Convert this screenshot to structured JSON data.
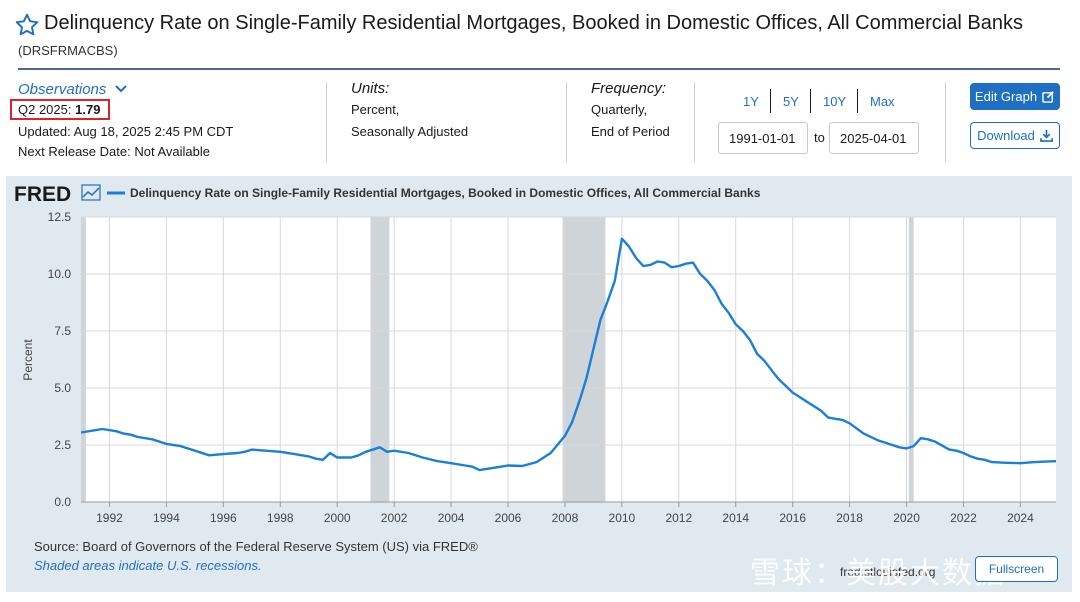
{
  "header": {
    "title": "Delinquency Rate on Single-Family Residential Mortgages, Booked in Domestic Offices, All Commercial Banks",
    "series_id": "(DRSFRMACBS)"
  },
  "observations": {
    "link_label": "Observations",
    "period_label": "Q2 2025:",
    "value": "1.79",
    "updated": "Updated: Aug 18, 2025 2:45 PM CDT",
    "next_release": "Next Release Date: Not Available"
  },
  "units": {
    "label": "Units:",
    "line1": "Percent,",
    "line2": "Seasonally Adjusted"
  },
  "frequency": {
    "label": "Frequency:",
    "line1": "Quarterly,",
    "line2": "End of Period"
  },
  "range": {
    "buttons": [
      "1Y",
      "5Y",
      "10Y",
      "Max"
    ],
    "start": "1991-01-01",
    "to_label": "to",
    "end": "2025-04-01"
  },
  "actions": {
    "edit_label": "Edit Graph",
    "download_label": "Download"
  },
  "chart_header": {
    "logo": "FRED",
    "legend_label": "Delinquency Rate on Single-Family Residential Mortgages, Booked in Domestic Offices, All Commercial Banks"
  },
  "footer": {
    "source": "Source: Board of Governors of the Federal Reserve System (US) via FRED®",
    "recession_note": "Shaded areas indicate U.S. recessions.",
    "site": "fred.stlouisfed.org",
    "fullscreen_label": "Fullscreen",
    "watermark": "雪球：美股大数据"
  },
  "colors": {
    "line": "#1a7fd9",
    "accent": "#1f6fc5",
    "recession": "#cfd4d9",
    "panel": "#e1e9f0",
    "highlight": "#d9232e"
  },
  "chart_data": {
    "type": "line",
    "title": "",
    "ylabel": "Percent",
    "xlabel": "",
    "xlim": [
      1991.0,
      2025.25
    ],
    "ylim": [
      0,
      12.5
    ],
    "y_ticks": [
      0.0,
      2.5,
      5.0,
      7.5,
      10.0,
      12.5
    ],
    "y_tick_labels": [
      "0.0",
      "2.5",
      "5.0",
      "7.5",
      "10.0",
      "12.5"
    ],
    "x_ticks": [
      1992,
      1994,
      1996,
      1998,
      2000,
      2002,
      2004,
      2006,
      2008,
      2010,
      2012,
      2014,
      2016,
      2018,
      2020,
      2022,
      2024
    ],
    "x_tick_labels": [
      "1992",
      "1994",
      "1996",
      "1998",
      "2000",
      "2002",
      "2004",
      "2006",
      "2008",
      "2010",
      "2012",
      "2014",
      "2016",
      "2018",
      "2020",
      "2022",
      "2024"
    ],
    "grid": true,
    "recessions": [
      [
        1991.0,
        1991.17
      ],
      [
        2001.17,
        2001.83
      ],
      [
        2007.92,
        2009.42
      ],
      [
        2020.08,
        2020.25
      ]
    ],
    "series": [
      {
        "name": "Delinquency Rate on Single-Family Residential Mortgages, Booked in Domestic Offices, All Commercial Banks",
        "points": [
          [
            1991.0,
            3.05
          ],
          [
            1991.5,
            3.15
          ],
          [
            1991.75,
            3.2
          ],
          [
            1992.25,
            3.1
          ],
          [
            1992.5,
            3.0
          ],
          [
            1992.75,
            2.95
          ],
          [
            1993.0,
            2.85
          ],
          [
            1993.5,
            2.75
          ],
          [
            1994.0,
            2.55
          ],
          [
            1994.5,
            2.45
          ],
          [
            1995.0,
            2.25
          ],
          [
            1995.5,
            2.05
          ],
          [
            1996.0,
            2.1
          ],
          [
            1996.5,
            2.15
          ],
          [
            1996.75,
            2.2
          ],
          [
            1997.0,
            2.3
          ],
          [
            1997.5,
            2.25
          ],
          [
            1998.0,
            2.2
          ],
          [
            1998.5,
            2.1
          ],
          [
            1999.0,
            2.0
          ],
          [
            1999.25,
            1.9
          ],
          [
            1999.5,
            1.85
          ],
          [
            1999.75,
            2.15
          ],
          [
            2000.0,
            1.95
          ],
          [
            2000.5,
            1.95
          ],
          [
            2000.75,
            2.05
          ],
          [
            2001.0,
            2.2
          ],
          [
            2001.5,
            2.4
          ],
          [
            2001.75,
            2.2
          ],
          [
            2002.0,
            2.25
          ],
          [
            2002.5,
            2.15
          ],
          [
            2003.0,
            1.95
          ],
          [
            2003.5,
            1.8
          ],
          [
            2004.0,
            1.7
          ],
          [
            2004.5,
            1.6
          ],
          [
            2004.75,
            1.55
          ],
          [
            2005.0,
            1.4
          ],
          [
            2005.25,
            1.45
          ],
          [
            2005.5,
            1.5
          ],
          [
            2005.75,
            1.55
          ],
          [
            2006.0,
            1.6
          ],
          [
            2006.5,
            1.58
          ],
          [
            2007.0,
            1.75
          ],
          [
            2007.5,
            2.15
          ],
          [
            2008.0,
            2.9
          ],
          [
            2008.25,
            3.5
          ],
          [
            2008.5,
            4.4
          ],
          [
            2008.75,
            5.4
          ],
          [
            2009.0,
            6.7
          ],
          [
            2009.25,
            8.0
          ],
          [
            2009.5,
            8.8
          ],
          [
            2009.75,
            9.7
          ],
          [
            2010.0,
            11.55
          ],
          [
            2010.25,
            11.2
          ],
          [
            2010.5,
            10.7
          ],
          [
            2010.75,
            10.35
          ],
          [
            2011.0,
            10.4
          ],
          [
            2011.25,
            10.55
          ],
          [
            2011.5,
            10.5
          ],
          [
            2011.75,
            10.3
          ],
          [
            2012.0,
            10.35
          ],
          [
            2012.25,
            10.45
          ],
          [
            2012.5,
            10.5
          ],
          [
            2012.75,
            10.0
          ],
          [
            2013.0,
            9.7
          ],
          [
            2013.25,
            9.3
          ],
          [
            2013.5,
            8.7
          ],
          [
            2013.75,
            8.3
          ],
          [
            2014.0,
            7.8
          ],
          [
            2014.25,
            7.5
          ],
          [
            2014.5,
            7.1
          ],
          [
            2014.75,
            6.5
          ],
          [
            2015.0,
            6.2
          ],
          [
            2015.25,
            5.8
          ],
          [
            2015.5,
            5.4
          ],
          [
            2015.75,
            5.1
          ],
          [
            2016.0,
            4.8
          ],
          [
            2016.25,
            4.6
          ],
          [
            2016.5,
            4.4
          ],
          [
            2016.75,
            4.2
          ],
          [
            2017.0,
            4.0
          ],
          [
            2017.25,
            3.7
          ],
          [
            2017.5,
            3.65
          ],
          [
            2017.75,
            3.6
          ],
          [
            2018.0,
            3.45
          ],
          [
            2018.5,
            3.0
          ],
          [
            2019.0,
            2.7
          ],
          [
            2019.5,
            2.5
          ],
          [
            2019.75,
            2.4
          ],
          [
            2020.0,
            2.35
          ],
          [
            2020.25,
            2.45
          ],
          [
            2020.5,
            2.8
          ],
          [
            2020.75,
            2.75
          ],
          [
            2021.0,
            2.65
          ],
          [
            2021.5,
            2.3
          ],
          [
            2021.75,
            2.25
          ],
          [
            2022.0,
            2.15
          ],
          [
            2022.25,
            2.0
          ],
          [
            2022.5,
            1.9
          ],
          [
            2022.75,
            1.85
          ],
          [
            2023.0,
            1.75
          ],
          [
            2023.5,
            1.72
          ],
          [
            2024.0,
            1.7
          ],
          [
            2024.5,
            1.75
          ],
          [
            2025.0,
            1.78
          ],
          [
            2025.25,
            1.79
          ]
        ]
      }
    ]
  }
}
